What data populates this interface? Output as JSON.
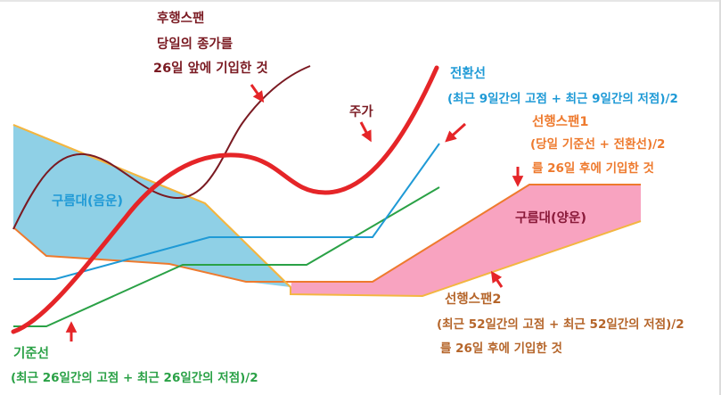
{
  "colors": {
    "price": "#e52528",
    "lagging": "#7a1a22",
    "conversion": "#1f9ad6",
    "base": "#2aa146",
    "span1": "#ee7a2e",
    "span_bear_fill": "#8fd0e6",
    "span_bull_fill": "#f8a3c0",
    "span_edge_bear": "#f3b641",
    "arrow": "#e52528"
  },
  "labels": {
    "lagging": [
      "후행스팬",
      "당일의 종가를",
      "26일 앞에 기입한 것"
    ],
    "conversion": [
      "전환선",
      "(최근 9일간의 고점 + 최근 9일간의 저점)/2"
    ],
    "price": "주가",
    "span1": [
      "선행스팬1",
      "(당일 기준선 + 전환선)/2",
      "를 26일 후에 기입한 것"
    ],
    "cloud_bear": "구름대(음운)",
    "cloud_bull": "구름대(양운)",
    "span2": [
      "선행스팬2",
      "(최근 52일간의 고점 + 최근 52일간의 저점)/2",
      "를 26일 후에 기입한 것"
    ],
    "base": [
      "기준선",
      "(최근 26일간의 고점 + 최근 26일간의 저점)/2"
    ]
  },
  "arrows": [
    "lagging-arrow",
    "price-arrow",
    "conversion-arrow",
    "span1-arrow",
    "span2-arrow",
    "base-arrow"
  ]
}
